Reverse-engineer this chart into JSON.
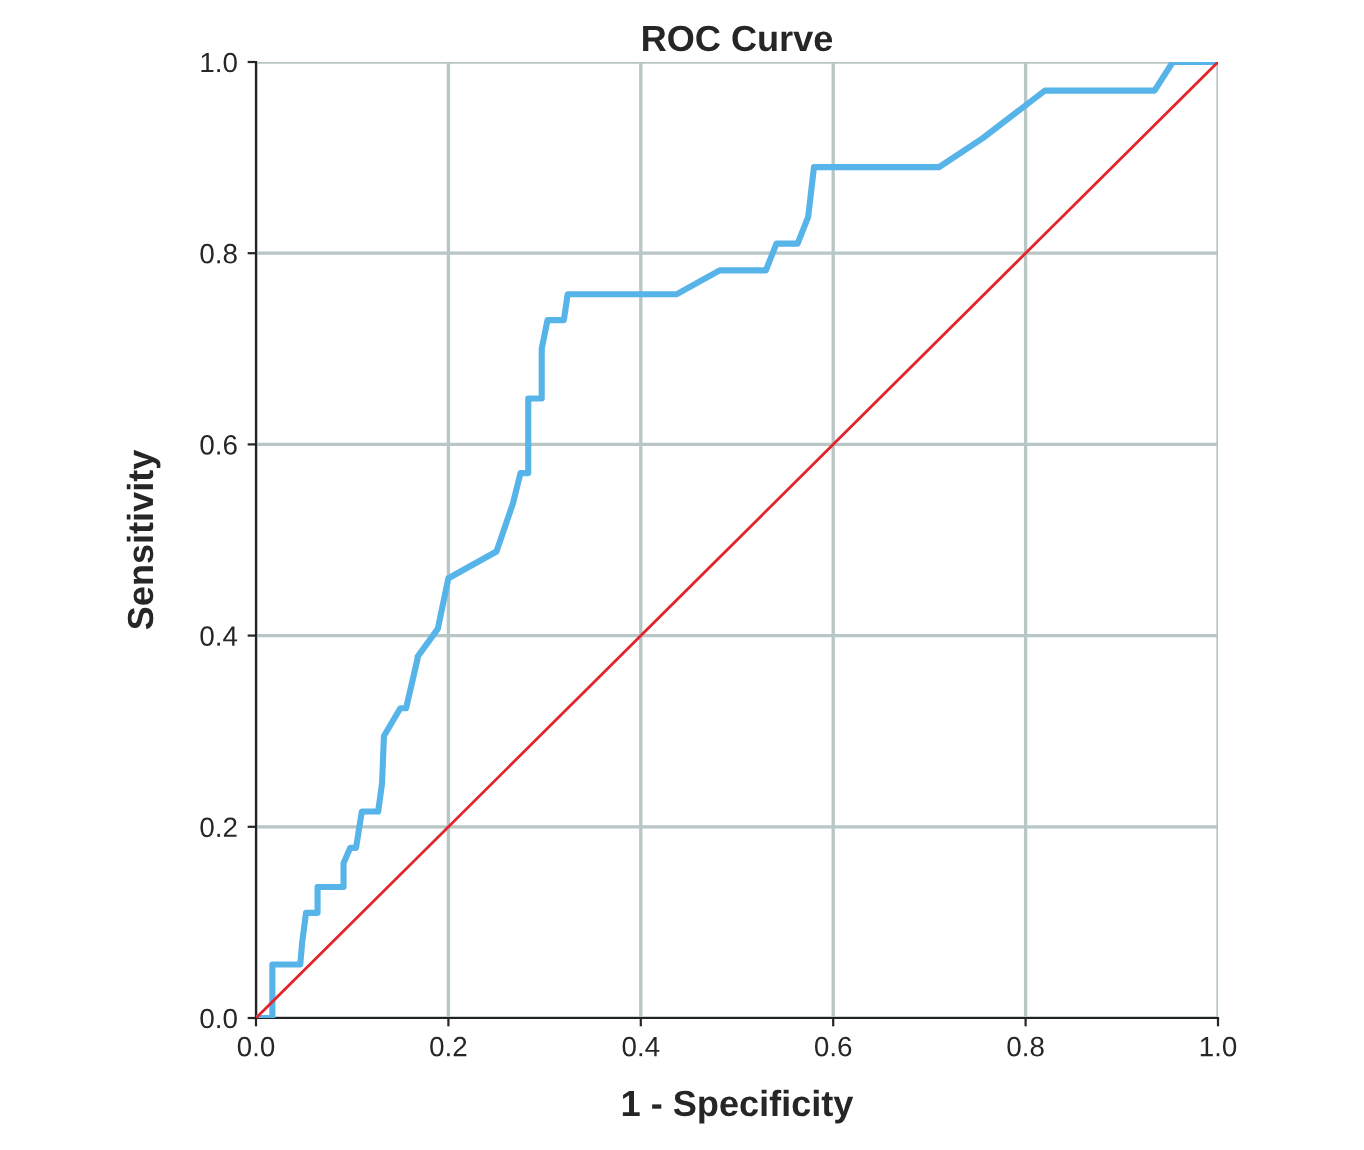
{
  "chart_data": {
    "type": "line",
    "title": "ROC Curve",
    "xlabel": "1 - Specificity",
    "ylabel": "Sensitivity",
    "xlim": [
      0,
      1
    ],
    "ylim": [
      0,
      1
    ],
    "xticks": [
      {
        "value": 0,
        "label": "0.0"
      },
      {
        "value": 0.2,
        "label": "0.2"
      },
      {
        "value": 0.4,
        "label": "0.4"
      },
      {
        "value": 0.6,
        "label": "0.6"
      },
      {
        "value": 0.8,
        "label": "0.8"
      },
      {
        "value": 1,
        "label": "1.0"
      }
    ],
    "yticks": [
      {
        "value": 0,
        "label": "0.0"
      },
      {
        "value": 0.2,
        "label": "0.2"
      },
      {
        "value": 0.4,
        "label": "0.4"
      },
      {
        "value": 0.6,
        "label": "0.6"
      },
      {
        "value": 0.8,
        "label": "0.8"
      },
      {
        "value": 1,
        "label": "1.0"
      }
    ],
    "grid": true,
    "legend": false,
    "series": [
      {
        "color": "#56b4e9",
        "x": [
          0,
          0.017,
          0.017,
          0.046,
          0.048,
          0.052,
          0.064,
          0.064,
          0.091,
          0.091,
          0.098,
          0.104,
          0.11,
          0.127,
          0.131,
          0.133,
          0.15,
          0.156,
          0.168,
          0.168,
          0.189,
          0.2,
          0.25,
          0.267,
          0.275,
          0.283,
          0.283,
          0.297,
          0.297,
          0.303,
          0.32,
          0.324,
          0.437,
          0.482,
          0.53,
          0.541,
          0.563,
          0.574,
          0.58,
          0.71,
          0.755,
          0.82,
          0.934,
          0.953,
          1.0
        ],
        "values": [
          0,
          0,
          0.056,
          0.056,
          0.079,
          0.11,
          0.11,
          0.137,
          0.137,
          0.162,
          0.178,
          0.178,
          0.216,
          0.216,
          0.245,
          0.295,
          0.324,
          0.324,
          0.376,
          0.378,
          0.407,
          0.46,
          0.488,
          0.538,
          0.57,
          0.57,
          0.648,
          0.648,
          0.7,
          0.73,
          0.73,
          0.757,
          0.757,
          0.782,
          0.782,
          0.81,
          0.81,
          0.838,
          0.89,
          0.89,
          0.92,
          0.97,
          0.97,
          1.0,
          1.0
        ]
      },
      {
        "color": "#e3242b",
        "x": [
          0,
          1
        ],
        "values": [
          0,
          1
        ]
      }
    ]
  }
}
